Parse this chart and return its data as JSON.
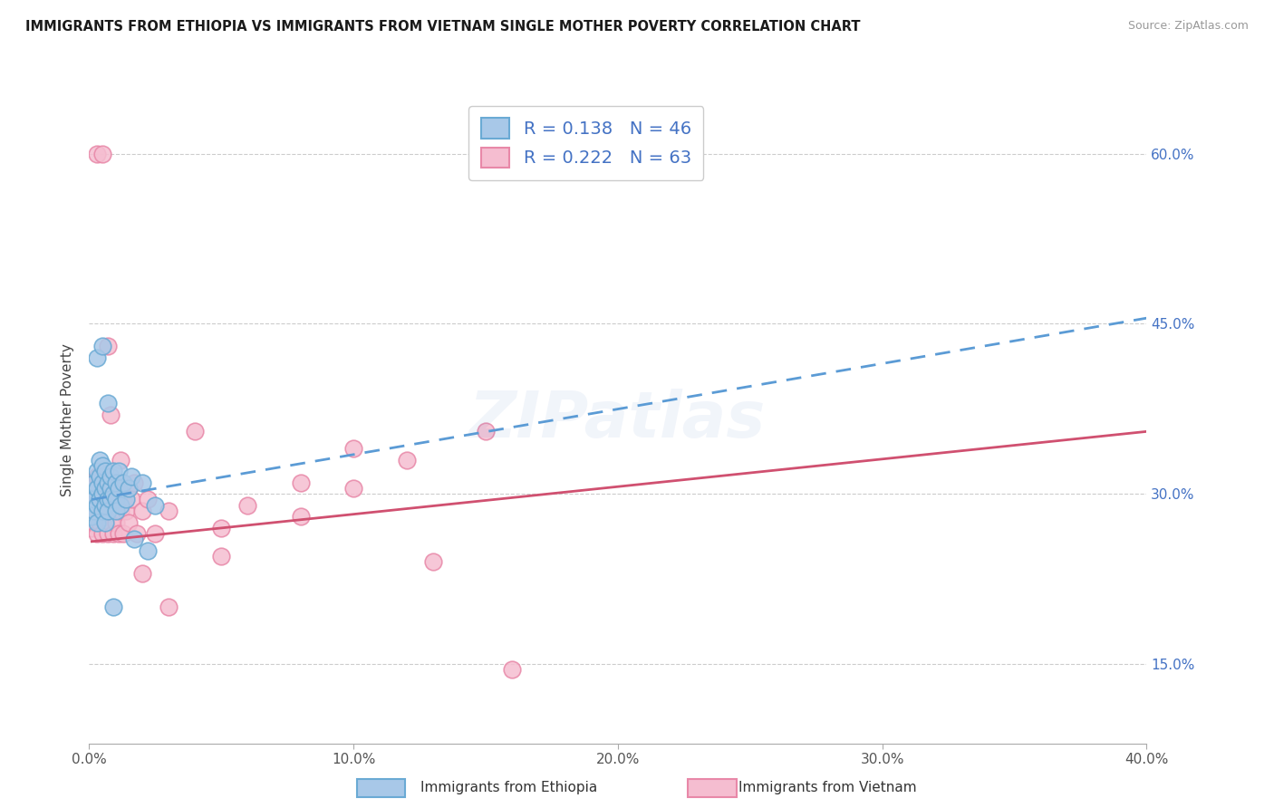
{
  "title": "IMMIGRANTS FROM ETHIOPIA VS IMMIGRANTS FROM VIETNAM SINGLE MOTHER POVERTY CORRELATION CHART",
  "source": "Source: ZipAtlas.com",
  "ylabel": "Single Mother Poverty",
  "xlim": [
    0.0,
    0.4
  ],
  "ylim": [
    0.08,
    0.65
  ],
  "x_ticks": [
    0.0,
    0.1,
    0.2,
    0.3,
    0.4
  ],
  "x_tick_labels": [
    "0.0%",
    "10.0%",
    "20.0%",
    "30.0%",
    "40.0%"
  ],
  "y_ticks": [
    0.15,
    0.3,
    0.45,
    0.6
  ],
  "y_tick_labels": [
    "15.0%",
    "30.0%",
    "45.0%",
    "60.0%"
  ],
  "legend1_R": "0.138",
  "legend1_N": "46",
  "legend2_R": "0.222",
  "legend2_N": "63",
  "legend_label1": "Immigrants from Ethiopia",
  "legend_label2": "Immigrants from Vietnam",
  "ethiopia_color": "#a8c8e8",
  "vietnam_color": "#f5bdd0",
  "ethiopia_edge": "#6aaad4",
  "vietnam_edge": "#e888a8",
  "line_ethiopia_color": "#5b9bd5",
  "line_vietnam_color": "#d05070",
  "watermark_text": "ZIPatlas",
  "ethiopia_x": [
    0.001,
    0.001,
    0.002,
    0.002,
    0.002,
    0.003,
    0.003,
    0.003,
    0.003,
    0.004,
    0.004,
    0.004,
    0.005,
    0.005,
    0.005,
    0.005,
    0.006,
    0.006,
    0.006,
    0.006,
    0.007,
    0.007,
    0.007,
    0.008,
    0.008,
    0.008,
    0.009,
    0.009,
    0.01,
    0.01,
    0.01,
    0.011,
    0.011,
    0.012,
    0.013,
    0.014,
    0.015,
    0.016,
    0.017,
    0.02,
    0.022,
    0.025,
    0.003,
    0.005,
    0.007,
    0.009
  ],
  "ethiopia_y": [
    0.28,
    0.3,
    0.285,
    0.31,
    0.295,
    0.29,
    0.305,
    0.32,
    0.275,
    0.295,
    0.315,
    0.33,
    0.285,
    0.3,
    0.31,
    0.325,
    0.29,
    0.305,
    0.32,
    0.275,
    0.295,
    0.31,
    0.285,
    0.305,
    0.295,
    0.315,
    0.3,
    0.32,
    0.295,
    0.31,
    0.285,
    0.305,
    0.32,
    0.29,
    0.31,
    0.295,
    0.305,
    0.315,
    0.26,
    0.31,
    0.25,
    0.29,
    0.42,
    0.43,
    0.38,
    0.2
  ],
  "vietnam_x": [
    0.001,
    0.001,
    0.002,
    0.002,
    0.002,
    0.003,
    0.003,
    0.003,
    0.004,
    0.004,
    0.004,
    0.005,
    0.005,
    0.005,
    0.006,
    0.006,
    0.006,
    0.007,
    0.007,
    0.007,
    0.008,
    0.008,
    0.008,
    0.009,
    0.009,
    0.01,
    0.01,
    0.01,
    0.011,
    0.011,
    0.012,
    0.012,
    0.013,
    0.013,
    0.014,
    0.015,
    0.015,
    0.016,
    0.017,
    0.018,
    0.02,
    0.022,
    0.025,
    0.03,
    0.04,
    0.05,
    0.06,
    0.08,
    0.1,
    0.12,
    0.15,
    0.003,
    0.005,
    0.007,
    0.008,
    0.012,
    0.02,
    0.03,
    0.05,
    0.08,
    0.1,
    0.13,
    0.16
  ],
  "vietnam_y": [
    0.27,
    0.295,
    0.285,
    0.31,
    0.275,
    0.295,
    0.315,
    0.265,
    0.29,
    0.31,
    0.275,
    0.295,
    0.315,
    0.265,
    0.29,
    0.305,
    0.275,
    0.295,
    0.31,
    0.265,
    0.29,
    0.305,
    0.275,
    0.295,
    0.265,
    0.29,
    0.31,
    0.275,
    0.295,
    0.265,
    0.285,
    0.31,
    0.265,
    0.295,
    0.285,
    0.305,
    0.275,
    0.295,
    0.31,
    0.265,
    0.285,
    0.295,
    0.265,
    0.285,
    0.355,
    0.245,
    0.29,
    0.31,
    0.34,
    0.33,
    0.355,
    0.6,
    0.6,
    0.43,
    0.37,
    0.33,
    0.23,
    0.2,
    0.27,
    0.28,
    0.305,
    0.24,
    0.145
  ],
  "eth_line_x": [
    0.001,
    0.4
  ],
  "eth_line_y": [
    0.295,
    0.455
  ],
  "vie_line_x": [
    0.001,
    0.4
  ],
  "vie_line_y": [
    0.258,
    0.355
  ]
}
